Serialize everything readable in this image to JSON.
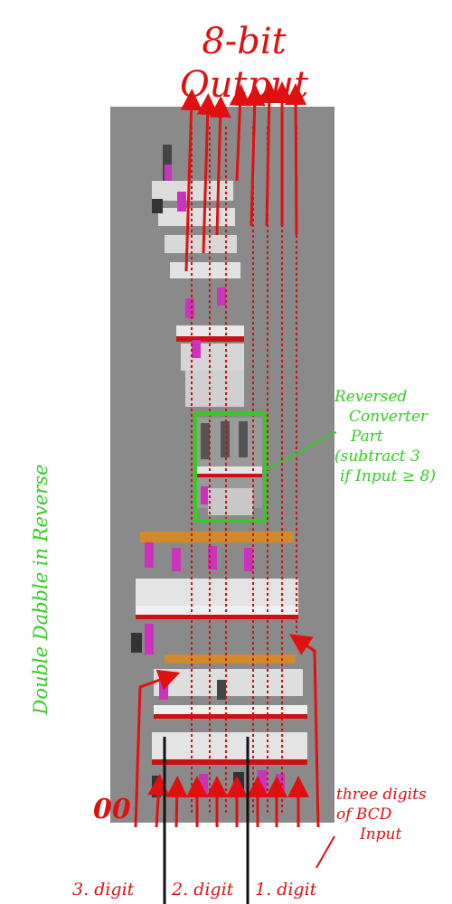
{
  "title": "8-bit Output",
  "side_label": "Double Dabble in Reverse",
  "annotation": {
    "lines": [
      "Reversed",
      "Converter",
      "Part",
      "(subtract 3",
      "if Input ≥ 8)"
    ]
  },
  "input_label": {
    "lines": [
      "three digits",
      "of BCD",
      "Input"
    ]
  },
  "zero_bits": "00",
  "digit_labels": [
    "3. digit",
    "2. digit",
    "1. digit"
  ],
  "colors": {
    "annotation_red": "#e01010",
    "annotation_green": "#33cc22",
    "stone_gray": "#8a8a8a",
    "redstone_red": "#cc1111",
    "piston_magenta": "#cc33bb",
    "plank_orange": "#d08a2a"
  }
}
